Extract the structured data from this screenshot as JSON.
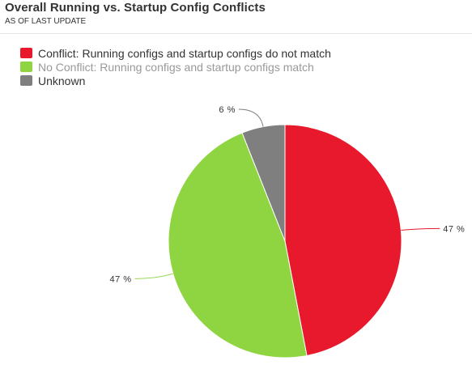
{
  "chart_data": {
    "type": "pie",
    "title": "Overall Running vs. Startup Config Conflicts",
    "subtitle": "AS OF LAST UPDATE",
    "legend_position": "top-left",
    "slices": [
      {
        "name": "Conflict: Running configs and startup configs do not match",
        "value": 47,
        "label": "47 %",
        "color": "#e8192c"
      },
      {
        "name": "No Conflict: Running configs and startup configs match",
        "value": 47,
        "label": "47 %",
        "color": "#8fd441"
      },
      {
        "name": "Unknown",
        "value": 6,
        "label": "6 %",
        "color": "#7f7f7f"
      }
    ]
  }
}
